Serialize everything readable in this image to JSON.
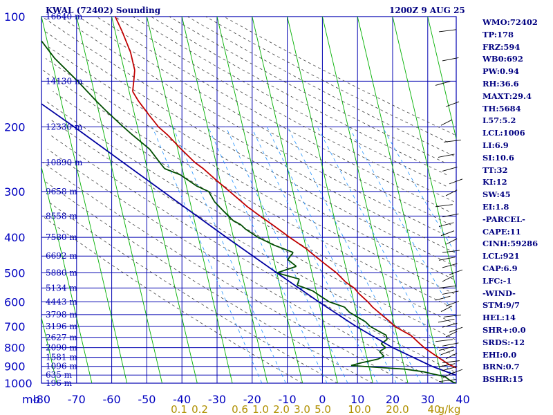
{
  "header": {
    "title": "KWAL (72402) Sounding",
    "datetime": "1200Z  9 AUG 25"
  },
  "indices": [
    "WMO:72402",
    "TP:178",
    "FRZ:594",
    "WB0:692",
    "PW:0.94",
    "RH:36.6",
    "MAXT:29.4",
    "TH:5684",
    "L57:5.2",
    "LCL:1006",
    "LI:6.9",
    "SI:10.6",
    "TT:32",
    "KI:12",
    "SW:45",
    "EI:1.8",
    "-PARCEL-",
    "CAPE:11",
    "CINH:59286",
    "LCL:921",
    "CAP:6.9",
    "LFC:-1",
    "-WIND-",
    "STM:9/7",
    "HEL:14",
    "SHR+:0.0",
    "SRDS:-12",
    "EHI:0.0",
    "BRN:0.7",
    "BSHR:15"
  ],
  "colors": {
    "grid": "#0000b0",
    "isotherm": "#00b000",
    "dry_adiabat": "#404040",
    "mixing_ratio": "#1e90ff",
    "temperature": "#c00000",
    "dewpoint": "#004d00",
    "parcel": "#0000a0",
    "pressure_label": "#0000c0",
    "mixing_label": "#b09000",
    "wind": "#000000"
  },
  "chart_data": {
    "type": "line",
    "title": "KWAL (72402) Sounding",
    "xlabel": "",
    "ylabel": "mb",
    "pressure_axis": {
      "unit": "mb",
      "labels": [
        100,
        200,
        300,
        400,
        500,
        600,
        700,
        800,
        900,
        1000
      ],
      "range": [
        100,
        1000
      ],
      "scale": "log"
    },
    "temperature_axis": {
      "labels": [
        -80,
        -70,
        -60,
        -50,
        -40,
        -30,
        -20,
        -10,
        0,
        10,
        20,
        30,
        40
      ],
      "unit": "C"
    },
    "height_labels": [
      {
        "p": 100,
        "label": "16640 m"
      },
      {
        "p": 150,
        "label": "14130 m"
      },
      {
        "p": 200,
        "label": "12330 m"
      },
      {
        "p": 250,
        "label": "10890 m"
      },
      {
        "p": 300,
        "label": "9658 m"
      },
      {
        "p": 350,
        "label": "8558 m"
      },
      {
        "p": 400,
        "label": "7580 m"
      },
      {
        "p": 450,
        "label": "6692 m"
      },
      {
        "p": 500,
        "label": "5880 m"
      },
      {
        "p": 550,
        "label": "5134 m"
      },
      {
        "p": 600,
        "label": "4443 m"
      },
      {
        "p": 650,
        "label": "3798 m"
      },
      {
        "p": 700,
        "label": "3196 m"
      },
      {
        "p": 750,
        "label": "2627 m"
      },
      {
        "p": 800,
        "label": "2090 m"
      },
      {
        "p": 850,
        "label": "1581 m"
      },
      {
        "p": 900,
        "label": "1096 m"
      },
      {
        "p": 950,
        "label": "635 m"
      },
      {
        "p": 1000,
        "label": "196 m"
      }
    ],
    "mixing_ratio_labels": [
      "0.1",
      "0.2",
      "0.6",
      "1.0",
      "2.0",
      "3.0",
      "5.0",
      "10.0",
      "20.0",
      "40",
      "g/kg"
    ],
    "mixing_ratio_values": [
      0.1,
      0.2,
      0.6,
      1.0,
      2.0,
      3.0,
      5.0,
      10.0,
      20.0,
      40.0
    ],
    "series": [
      {
        "key": "temperature",
        "points": [
          [
            1010,
            21
          ],
          [
            990,
            19
          ],
          [
            970,
            18
          ],
          [
            950,
            17
          ],
          [
            925,
            16
          ],
          [
            910,
            15
          ],
          [
            890,
            13
          ],
          [
            860,
            11
          ],
          [
            830,
            9
          ],
          [
            800,
            7
          ],
          [
            780,
            6
          ],
          [
            760,
            5
          ],
          [
            740,
            4
          ],
          [
            720,
            2
          ],
          [
            700,
            0
          ],
          [
            680,
            -1
          ],
          [
            650,
            -3
          ],
          [
            620,
            -5
          ],
          [
            600,
            -6
          ],
          [
            570,
            -8
          ],
          [
            550,
            -9
          ],
          [
            530,
            -11
          ],
          [
            500,
            -13
          ],
          [
            470,
            -16
          ],
          [
            450,
            -18
          ],
          [
            430,
            -20
          ],
          [
            400,
            -24
          ],
          [
            370,
            -28
          ],
          [
            350,
            -31
          ],
          [
            330,
            -34
          ],
          [
            300,
            -38
          ],
          [
            280,
            -41
          ],
          [
            260,
            -44
          ],
          [
            250,
            -46
          ],
          [
            230,
            -49
          ],
          [
            210,
            -52
          ],
          [
            200,
            -54
          ],
          [
            185,
            -56
          ],
          [
            170,
            -58
          ],
          [
            160,
            -59
          ],
          [
            150,
            -58
          ],
          [
            140,
            -57
          ],
          [
            125,
            -57
          ],
          [
            110,
            -58
          ],
          [
            100,
            -59
          ]
        ]
      },
      {
        "key": "dewpoint",
        "points": [
          [
            1010,
            16
          ],
          [
            995,
            13
          ],
          [
            980,
            12
          ],
          [
            960,
            11
          ],
          [
            945,
            8
          ],
          [
            930,
            5
          ],
          [
            915,
            0
          ],
          [
            905,
            -8
          ],
          [
            895,
            -15
          ],
          [
            880,
            -12
          ],
          [
            860,
            -7
          ],
          [
            845,
            -5
          ],
          [
            820,
            -6
          ],
          [
            800,
            -4
          ],
          [
            780,
            -5
          ],
          [
            760,
            -3
          ],
          [
            740,
            -3
          ],
          [
            720,
            -5
          ],
          [
            700,
            -7
          ],
          [
            680,
            -8
          ],
          [
            660,
            -10
          ],
          [
            640,
            -12
          ],
          [
            620,
            -13
          ],
          [
            600,
            -17
          ],
          [
            580,
            -19
          ],
          [
            560,
            -21
          ],
          [
            540,
            -25
          ],
          [
            520,
            -24
          ],
          [
            500,
            -30
          ],
          [
            480,
            -24
          ],
          [
            460,
            -26
          ],
          [
            440,
            -24
          ],
          [
            420,
            -29
          ],
          [
            400,
            -33
          ],
          [
            380,
            -36
          ],
          [
            370,
            -37
          ],
          [
            360,
            -39
          ],
          [
            340,
            -41
          ],
          [
            320,
            -43
          ],
          [
            300,
            -44
          ],
          [
            290,
            -47
          ],
          [
            270,
            -51
          ],
          [
            260,
            -55
          ],
          [
            250,
            -56
          ],
          [
            230,
            -58
          ],
          [
            210,
            -62
          ],
          [
            200,
            -64
          ],
          [
            180,
            -68
          ],
          [
            170,
            -70
          ],
          [
            150,
            -74
          ],
          [
            130,
            -79
          ],
          [
            110,
            -83
          ],
          [
            100,
            -86
          ]
        ]
      },
      {
        "key": "parcel",
        "points": [
          [
            1010,
            21
          ],
          [
            900,
            8
          ],
          [
            800,
            -2
          ],
          [
            700,
            -11
          ],
          [
            600,
            -20
          ],
          [
            500,
            -30
          ],
          [
            400,
            -42
          ],
          [
            300,
            -57
          ],
          [
            200,
            -78
          ],
          [
            160,
            -90
          ]
        ]
      }
    ],
    "grid": true,
    "legend": "none"
  }
}
